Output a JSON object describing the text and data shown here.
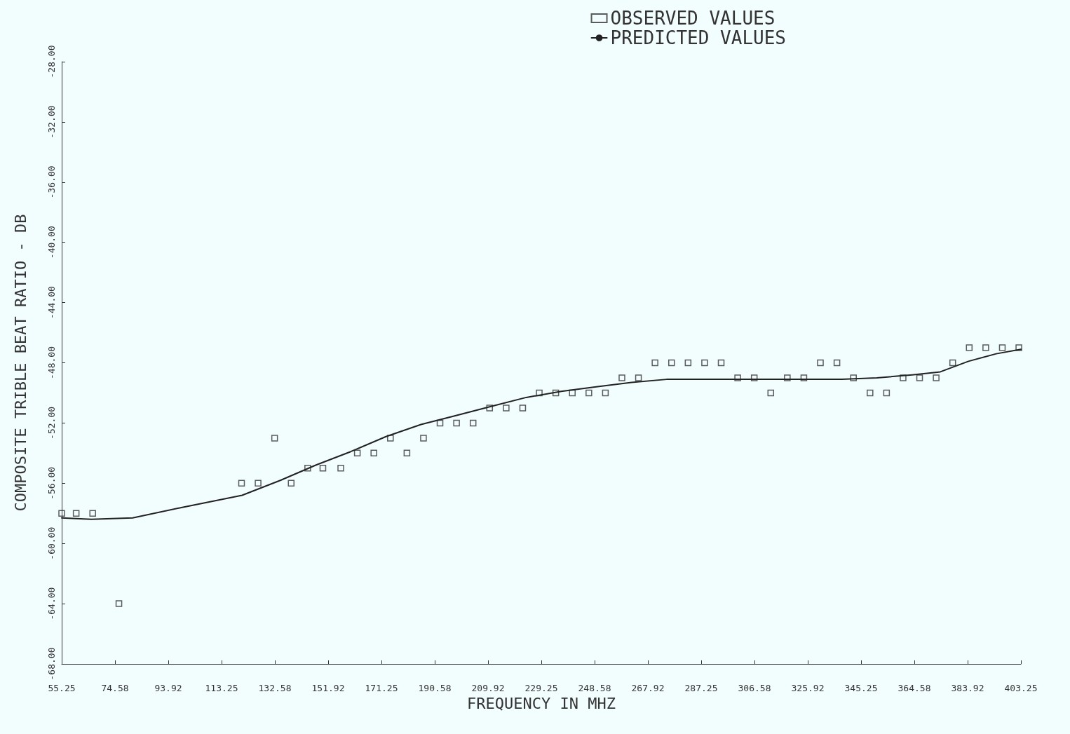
{
  "chart_data": {
    "type": "scatter",
    "xlabel": "FREQUENCY IN MHZ",
    "ylabel": "COMPOSITE TRIBLE BEAT RATIO - DB",
    "xlim": [
      55.25,
      403.25
    ],
    "xticks": [
      55.25,
      74.58,
      93.92,
      113.25,
      132.58,
      151.92,
      171.25,
      190.58,
      209.92,
      229.25,
      248.58,
      267.92,
      287.25,
      306.58,
      325.92,
      345.25,
      364.58,
      383.92,
      403.25
    ],
    "ylim": [
      -68,
      -28
    ],
    "yticks": [
      {
        "value": -68,
        "label": "-68.00"
      },
      {
        "value": -64,
        "label": "-64.00"
      },
      {
        "value": -60,
        "label": "-60.00"
      },
      {
        "value": -56,
        "label": "-56.00"
      },
      {
        "value": -52,
        "label": "-52.00"
      },
      {
        "value": -48,
        "label": "-48.00"
      },
      {
        "value": -44,
        "label": "-44.00"
      },
      {
        "value": -40,
        "label": "-40.00"
      },
      {
        "value": -36,
        "label": "-36.00"
      },
      {
        "value": -32,
        "label": "-32.00"
      },
      {
        "value": -28,
        "label": "-28.00"
      }
    ],
    "grid": false,
    "legend": "top right",
    "series": [
      {
        "name": "OBSERVED VALUES",
        "marker": "square",
        "color": "#333333",
        "x": [
          55.25,
          60.5,
          66.5,
          76,
          120.5,
          126.5,
          132.5,
          138.5,
          144.5,
          150,
          156.5,
          162.5,
          168.5,
          174.5,
          180.5,
          186.5,
          192.5,
          198.5,
          204.5,
          210.5,
          216.5,
          222.5,
          228.5,
          234.5,
          240.5,
          246.5,
          252.5,
          258.5,
          264.5,
          270.5,
          276.5,
          282.5,
          288.5,
          294.5,
          300.5,
          306.5,
          312.5,
          318.5,
          324.5,
          330.5,
          336.5,
          342.5,
          348.5,
          354.5,
          360.5,
          366.5,
          372.5,
          378.5,
          384.5,
          390.5,
          396.5,
          402.5
        ],
        "values": [
          -58,
          -58,
          -58,
          -64,
          -56,
          -56,
          -53,
          -56,
          -55,
          -55,
          -55,
          -54,
          -54,
          -53,
          -54,
          -53,
          -52,
          -52,
          -52,
          -51,
          -51,
          -51,
          -50,
          -50,
          -50,
          -50,
          -50,
          -49,
          -49,
          -48,
          -48,
          -48,
          -48,
          -48,
          -49,
          -49,
          -50,
          -49,
          -49,
          -48,
          -48,
          -49,
          -50,
          -50,
          -49,
          -49,
          -49,
          -48,
          -47,
          -47,
          -47,
          -47
        ]
      },
      {
        "name": "PREDICTED VALUES",
        "type": "line",
        "marker": "none",
        "line_style": "solid",
        "color": "#222222",
        "x": [
          55.25,
          66,
          81,
          99,
          120.7,
          134.7,
          147.4,
          160.1,
          172.9,
          185.6,
          198.3,
          211,
          223.8,
          236.5,
          249.2,
          262,
          274.7,
          287.4,
          300,
          313,
          338.3,
          351,
          363.8,
          374,
          384.2,
          394.3,
          403.25
        ],
        "values": [
          -58.3,
          -58.4,
          -58.3,
          -57.6,
          -56.8,
          -55.8,
          -54.8,
          -53.9,
          -52.9,
          -52.1,
          -51.5,
          -50.9,
          -50.3,
          -49.9,
          -49.6,
          -49.3,
          -49.1,
          -49.1,
          -49.1,
          -49.1,
          -49.1,
          -49,
          -48.8,
          -48.6,
          -47.9,
          -47.4,
          -47.1
        ]
      }
    ]
  }
}
